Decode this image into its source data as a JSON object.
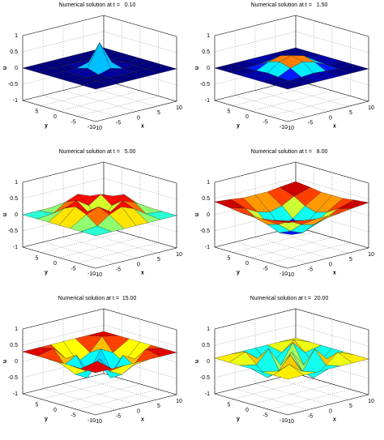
{
  "chart_data": [
    {
      "type": "surface",
      "title": "Numerical solution at t =   0.10",
      "xlabel": "x",
      "ylabel": "y",
      "zlabel": "u",
      "x": [
        -10,
        -6,
        -3,
        0,
        3,
        6,
        10
      ],
      "y": [
        -10,
        -6,
        -3,
        0,
        3,
        6,
        10
      ],
      "z": [
        [
          0,
          0,
          0,
          0,
          0,
          0,
          0
        ],
        [
          0,
          0,
          0,
          0,
          0,
          0,
          0
        ],
        [
          0,
          0,
          0,
          0.1,
          0,
          0,
          0
        ],
        [
          0,
          0,
          0.1,
          0.8,
          0.1,
          0,
          0
        ],
        [
          0,
          0,
          0,
          0.1,
          0,
          0,
          0
        ],
        [
          0,
          0,
          0,
          0,
          0,
          0,
          0
        ],
        [
          0,
          0,
          0,
          0,
          0,
          0,
          0
        ]
      ],
      "xlim": [
        -10,
        10
      ],
      "ylim": [
        -10,
        10
      ],
      "zlim": [
        -1,
        1
      ],
      "xticks": [
        -10,
        -5,
        0,
        5,
        10
      ],
      "yticks": [
        -10,
        -5,
        0,
        5
      ],
      "zticks": [
        -1,
        -0.5,
        0,
        0.5,
        1
      ],
      "grid": true
    },
    {
      "type": "surface",
      "title": "Numerical solution at t =   1.50",
      "xlabel": "x",
      "ylabel": "y",
      "zlabel": "u",
      "x": [
        -10,
        -6,
        -3,
        0,
        3,
        6,
        10
      ],
      "y": [
        -10,
        -6,
        -3,
        0,
        3,
        6,
        10
      ],
      "z": [
        [
          0,
          0,
          0,
          0,
          0,
          0,
          0
        ],
        [
          0,
          0,
          0.02,
          0.05,
          0.02,
          0,
          0
        ],
        [
          0,
          0.02,
          0.2,
          0.3,
          0.2,
          0.02,
          0
        ],
        [
          0,
          0.05,
          0.3,
          0.4,
          0.3,
          0.05,
          0
        ],
        [
          0,
          0.02,
          0.2,
          0.3,
          0.2,
          0.02,
          0
        ],
        [
          0,
          0,
          0.02,
          0.05,
          0.02,
          0,
          0
        ],
        [
          0,
          0,
          0,
          0,
          0,
          0,
          0
        ]
      ],
      "xlim": [
        -10,
        10
      ],
      "ylim": [
        -10,
        10
      ],
      "zlim": [
        -1,
        1
      ],
      "xticks": [
        -10,
        -5,
        0,
        5,
        10
      ],
      "yticks": [
        -10,
        -5,
        0,
        5
      ],
      "zticks": [
        -1,
        -0.5,
        0,
        0.5,
        1
      ],
      "grid": true
    },
    {
      "type": "surface",
      "title": "Numerical solution at t =   5.00",
      "xlabel": "x",
      "ylabel": "y",
      "zlabel": "u",
      "x": [
        -10,
        -6,
        -3,
        0,
        3,
        6,
        10
      ],
      "y": [
        -10,
        -6,
        -3,
        0,
        3,
        6,
        10
      ],
      "z": [
        [
          0,
          0,
          0,
          0,
          0,
          0,
          0
        ],
        [
          0,
          0.05,
          0.3,
          0.45,
          0.3,
          0.05,
          0
        ],
        [
          0,
          0.3,
          0.45,
          0.2,
          0.45,
          0.3,
          0
        ],
        [
          0,
          0.45,
          0.2,
          -0.3,
          0.2,
          0.45,
          0
        ],
        [
          0,
          0.3,
          0.45,
          0.2,
          0.45,
          0.3,
          0
        ],
        [
          0,
          0.05,
          0.3,
          0.45,
          0.3,
          0.05,
          0
        ],
        [
          0,
          0,
          0,
          0,
          0,
          0,
          0
        ]
      ],
      "xlim": [
        -10,
        10
      ],
      "ylim": [
        -10,
        10
      ],
      "zlim": [
        -1,
        1
      ],
      "xticks": [
        -10,
        -5,
        0,
        5,
        10
      ],
      "yticks": [
        -10,
        -5,
        0,
        5
      ],
      "zticks": [
        -1,
        -0.5,
        0,
        0.5,
        1
      ],
      "grid": true
    },
    {
      "type": "surface",
      "title": "Numerical solution at t =   8.00",
      "xlabel": "x",
      "ylabel": "y",
      "zlabel": "u",
      "x": [
        -10,
        -6,
        -3,
        0,
        3,
        6,
        10
      ],
      "y": [
        -10,
        -6,
        -3,
        0,
        3,
        6,
        10
      ],
      "z": [
        [
          0.4,
          0.35,
          0.3,
          0.3,
          0.3,
          0.35,
          0.4
        ],
        [
          0.35,
          0.2,
          0,
          -0.1,
          0,
          0.2,
          0.35
        ],
        [
          0.3,
          0,
          -0.3,
          -0.45,
          -0.3,
          0,
          0.3
        ],
        [
          0.3,
          -0.1,
          -0.45,
          -0.6,
          -0.45,
          -0.1,
          0.3
        ],
        [
          0.3,
          0,
          -0.3,
          -0.45,
          -0.3,
          0,
          0.3
        ],
        [
          0.35,
          0.2,
          0,
          -0.1,
          0,
          0.2,
          0.35
        ],
        [
          0.4,
          0.35,
          0.3,
          0.3,
          0.3,
          0.35,
          0.4
        ]
      ],
      "xlim": [
        -10,
        10
      ],
      "ylim": [
        -10,
        10
      ],
      "zlim": [
        -1,
        1
      ],
      "xticks": [
        -10,
        -5,
        0,
        5,
        10
      ],
      "yticks": [
        -10,
        -5,
        0,
        5
      ],
      "zticks": [
        -1,
        -0.5,
        0,
        0.5,
        1
      ],
      "grid": true
    },
    {
      "type": "surface",
      "title": "Numerical solution at t =  15.00",
      "xlabel": "x",
      "ylabel": "y",
      "zlabel": "u",
      "x": [
        -10,
        -6,
        -3,
        0,
        3,
        6,
        10
      ],
      "y": [
        -10,
        -6,
        -3,
        0,
        3,
        6,
        10
      ],
      "z": [
        [
          0.3,
          0.3,
          0.3,
          0.3,
          0.3,
          0.3,
          0.3
        ],
        [
          0.3,
          0.4,
          0,
          -0.2,
          0,
          0.4,
          0.3
        ],
        [
          0.3,
          0,
          0.2,
          -0.4,
          0.2,
          0,
          0.3
        ],
        [
          0.3,
          -0.2,
          -0.4,
          0.1,
          -0.4,
          -0.2,
          0.3
        ],
        [
          0.3,
          0,
          0.2,
          -0.4,
          0.2,
          0,
          0.3
        ],
        [
          0.3,
          0.4,
          0,
          -0.2,
          0,
          0.4,
          0.3
        ],
        [
          0.3,
          0.3,
          0.3,
          0.3,
          0.3,
          0.3,
          0.3
        ]
      ],
      "xlim": [
        -10,
        10
      ],
      "ylim": [
        -10,
        10
      ],
      "zlim": [
        -1,
        1
      ],
      "xticks": [
        -10,
        -5,
        0,
        5,
        10
      ],
      "yticks": [
        -10,
        -5,
        0,
        5
      ],
      "zticks": [
        -1,
        -0.5,
        0,
        0.5,
        1
      ],
      "grid": true
    },
    {
      "type": "surface",
      "title": "Numerical solution at t =  20.00",
      "xlabel": "x",
      "ylabel": "y",
      "zlabel": "u",
      "x": [
        -10,
        -6,
        -3,
        0,
        3,
        6,
        10
      ],
      "y": [
        -10,
        -6,
        -3,
        0,
        3,
        6,
        10
      ],
      "z": [
        [
          0.1,
          0.1,
          0.1,
          0.1,
          0.1,
          0.1,
          0.1
        ],
        [
          0.1,
          0.3,
          0,
          -0.3,
          0,
          0.3,
          0.1
        ],
        [
          0.1,
          0,
          0.4,
          -0.2,
          0.4,
          0,
          0.1
        ],
        [
          0.1,
          -0.3,
          -0.2,
          0.3,
          -0.2,
          -0.3,
          0.1
        ],
        [
          0.1,
          0,
          0.4,
          -0.2,
          0.4,
          0,
          0.1
        ],
        [
          0.1,
          0.3,
          0,
          -0.3,
          0,
          0.3,
          0.1
        ],
        [
          0.1,
          0.1,
          0.1,
          0.1,
          0.1,
          0.1,
          0.1
        ]
      ],
      "xlim": [
        -10,
        10
      ],
      "ylim": [
        -10,
        10
      ],
      "zlim": [
        -1,
        1
      ],
      "xticks": [
        -10,
        -5,
        0,
        5,
        10
      ],
      "yticks": [
        -10,
        -5,
        0,
        5
      ],
      "zticks": [
        -1,
        -0.5,
        0,
        0.5,
        1
      ],
      "grid": true
    }
  ]
}
